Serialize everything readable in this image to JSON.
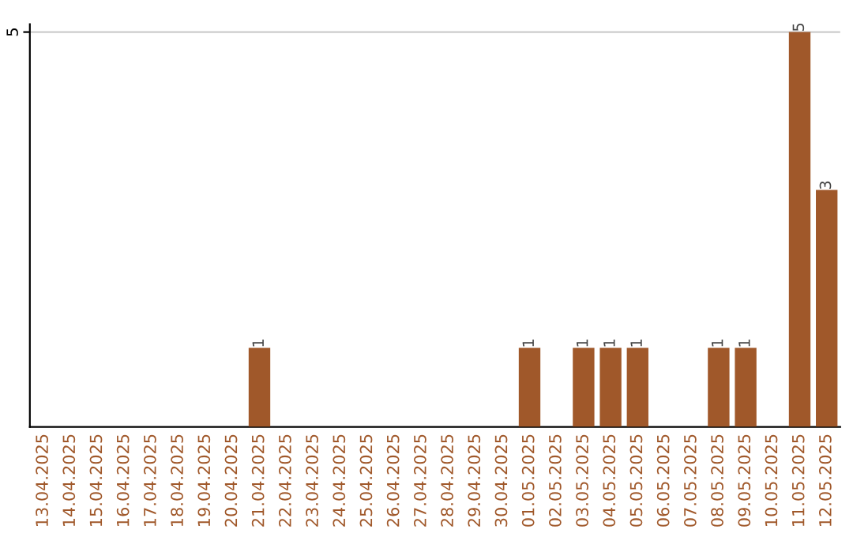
{
  "chart_data": {
    "type": "bar",
    "categories": [
      "13.04.2025",
      "14.04.2025",
      "15.04.2025",
      "16.04.2025",
      "17.04.2025",
      "18.04.2025",
      "19.04.2025",
      "20.04.2025",
      "21.04.2025",
      "22.04.2025",
      "23.04.2025",
      "24.04.2025",
      "25.04.2025",
      "26.04.2025",
      "27.04.2025",
      "28.04.2025",
      "29.04.2025",
      "30.04.2025",
      "01.05.2025",
      "02.05.2025",
      "03.05.2025",
      "04.05.2025",
      "05.05.2025",
      "06.05.2025",
      "07.05.2025",
      "08.05.2025",
      "09.05.2025",
      "10.05.2025",
      "11.05.2025",
      "12.05.2025"
    ],
    "values": [
      0,
      0,
      0,
      0,
      0,
      0,
      0,
      0,
      1,
      0,
      0,
      0,
      0,
      0,
      0,
      0,
      0,
      0,
      1,
      0,
      1,
      1,
      1,
      0,
      0,
      1,
      1,
      0,
      5,
      3
    ],
    "value_labels": [
      null,
      null,
      null,
      null,
      null,
      null,
      null,
      null,
      "1",
      null,
      null,
      null,
      null,
      null,
      null,
      null,
      null,
      null,
      "1",
      null,
      "1",
      "1",
      "1",
      null,
      null,
      "1",
      "1",
      null,
      "5",
      "3"
    ],
    "color": "#a0582a",
    "ylim": [
      0,
      5.1
    ],
    "yticks": [
      5
    ],
    "grid": "y"
  }
}
